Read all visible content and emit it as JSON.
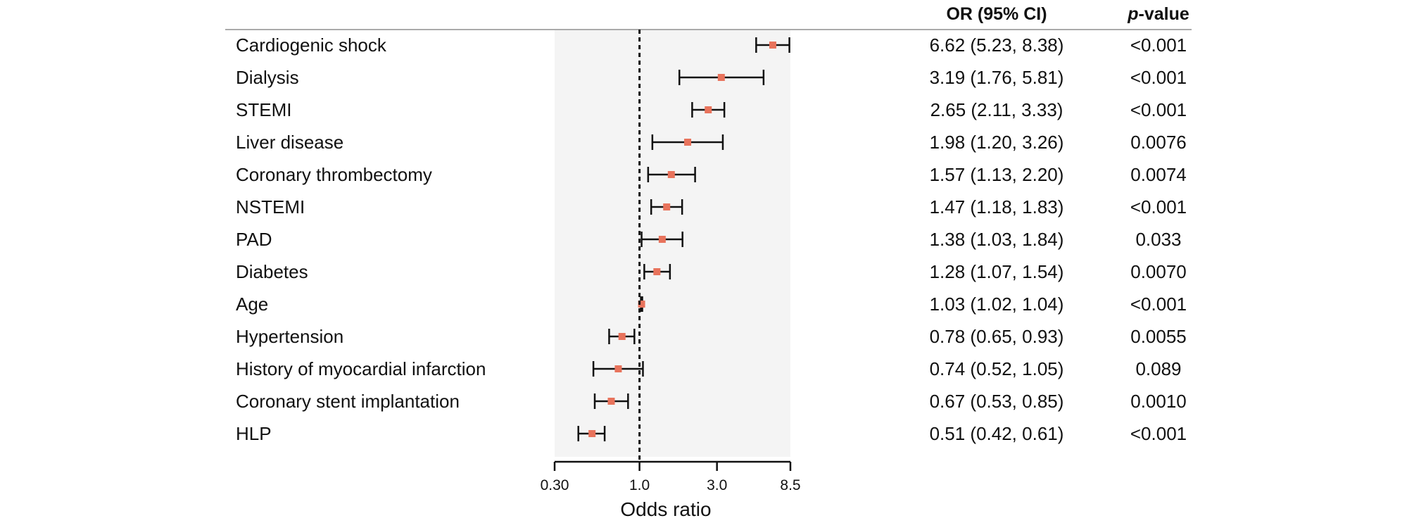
{
  "chart_data": {
    "type": "forest",
    "xscale": "log",
    "xlabel": "Odds ratio",
    "xlim": [
      0.3,
      8.5
    ],
    "reference_value": 1.0,
    "xticks": [
      {
        "value": 0.3,
        "label": "0.30"
      },
      {
        "value": 1.0,
        "label": "1.0"
      },
      {
        "value": 3.0,
        "label": "3.0"
      },
      {
        "value": 8.5,
        "label": "8.5"
      }
    ],
    "columns": {
      "or_header": "OR (95% CI)",
      "p_header_italic": "p",
      "p_header_rest": "-value"
    },
    "colors": {
      "marker": "#e8735c",
      "panel": "#f4f4f4",
      "whisker": "#111111",
      "header_rule": "#aaaaaa"
    },
    "rows": [
      {
        "label": "Cardiogenic shock",
        "or": 6.62,
        "lo": 5.23,
        "hi": 8.38,
        "or_text": "6.62 (5.23, 8.38)",
        "p": "<0.001"
      },
      {
        "label": "Dialysis",
        "or": 3.19,
        "lo": 1.76,
        "hi": 5.81,
        "or_text": "3.19 (1.76, 5.81)",
        "p": "<0.001"
      },
      {
        "label": "STEMI",
        "or": 2.65,
        "lo": 2.11,
        "hi": 3.33,
        "or_text": "2.65 (2.11, 3.33)",
        "p": "<0.001"
      },
      {
        "label": "Liver disease",
        "or": 1.98,
        "lo": 1.2,
        "hi": 3.26,
        "or_text": "1.98 (1.20, 3.26)",
        "p": "0.0076"
      },
      {
        "label": "Coronary thrombectomy",
        "or": 1.57,
        "lo": 1.13,
        "hi": 2.2,
        "or_text": "1.57 (1.13, 2.20)",
        "p": "0.0074"
      },
      {
        "label": "NSTEMI",
        "or": 1.47,
        "lo": 1.18,
        "hi": 1.83,
        "or_text": "1.47 (1.18, 1.83)",
        "p": "<0.001"
      },
      {
        "label": "PAD",
        "or": 1.38,
        "lo": 1.03,
        "hi": 1.84,
        "or_text": "1.38 (1.03, 1.84)",
        "p": "0.033"
      },
      {
        "label": "Diabetes",
        "or": 1.28,
        "lo": 1.07,
        "hi": 1.54,
        "or_text": "1.28 (1.07, 1.54)",
        "p": "0.0070"
      },
      {
        "label": "Age",
        "or": 1.03,
        "lo": 1.02,
        "hi": 1.04,
        "or_text": "1.03 (1.02, 1.04)",
        "p": "<0.001"
      },
      {
        "label": "Hypertension",
        "or": 0.78,
        "lo": 0.65,
        "hi": 0.93,
        "or_text": "0.78 (0.65, 0.93)",
        "p": "0.0055"
      },
      {
        "label": "History of myocardial infarction",
        "or": 0.74,
        "lo": 0.52,
        "hi": 1.05,
        "or_text": "0.74 (0.52, 1.05)",
        "p": "0.089"
      },
      {
        "label": "Coronary stent implantation",
        "or": 0.67,
        "lo": 0.53,
        "hi": 0.85,
        "or_text": "0.67 (0.53, 0.85)",
        "p": "0.0010"
      },
      {
        "label": "HLP",
        "or": 0.51,
        "lo": 0.42,
        "hi": 0.61,
        "or_text": "0.51 (0.42, 0.61)",
        "p": "<0.001"
      }
    ]
  }
}
